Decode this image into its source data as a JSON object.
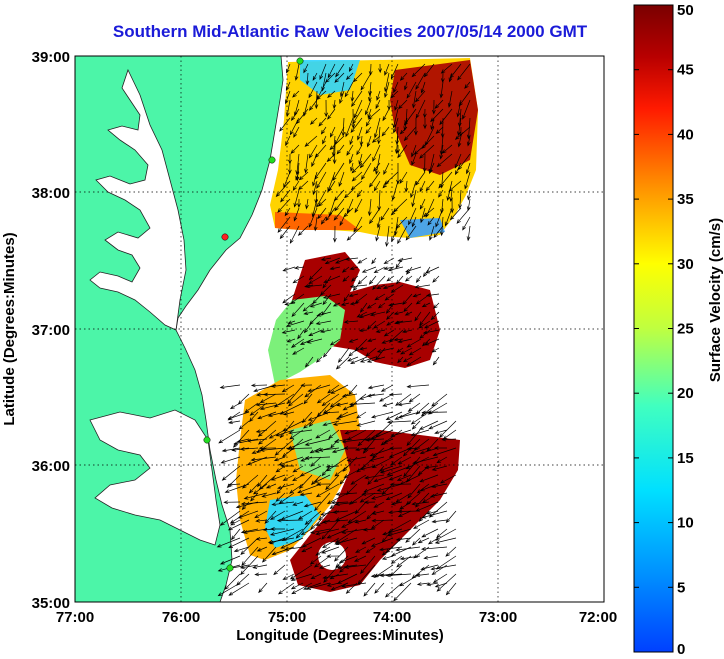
{
  "title": "Southern Mid-Atlantic Raw Velocities 2007/05/14 2000 GMT",
  "x_axis": {
    "label": "Longitude (Degrees:Minutes)",
    "ticks": [
      "77:00",
      "76:00",
      "75:00",
      "74:00",
      "73:00",
      "72:00"
    ]
  },
  "y_axis": {
    "label": "Latitude (Degrees:Minutes)",
    "ticks": [
      "39:00",
      "38:00",
      "37:00",
      "36:00",
      "35:00"
    ]
  },
  "colorbar": {
    "label": "Surface Velocity (cm/s)",
    "ticks": [
      "50",
      "45",
      "40",
      "35",
      "30",
      "25",
      "20",
      "15",
      "10",
      "5",
      "0"
    ],
    "min": 0,
    "max": 50
  },
  "colors": {
    "land": "#4cf5a8",
    "water": "#ffffff",
    "title": "#1b1bd8",
    "arrows": "#000000",
    "radar_sites": "#22dd22"
  },
  "map": {
    "lon_range": [
      "77:00",
      "72:00"
    ],
    "lat_range": [
      "35:00",
      "39:00"
    ],
    "grid": true
  }
}
